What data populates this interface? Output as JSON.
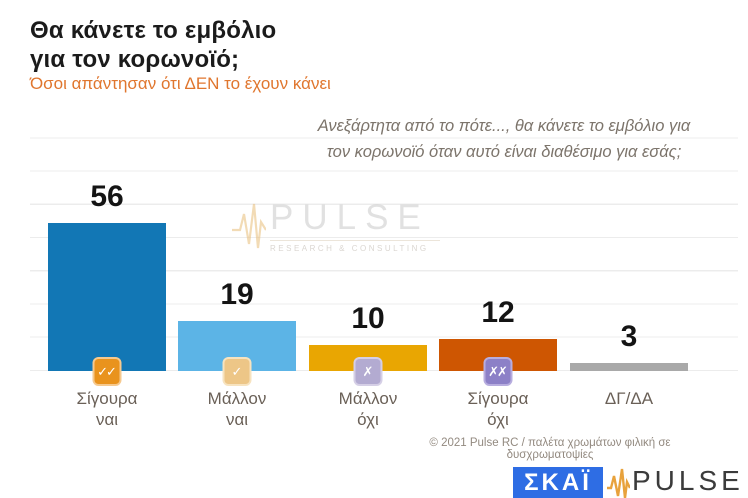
{
  "header": {
    "title_line1": "Θα κάνετε το εμβόλιο",
    "title_line2": "για τον κορωνοϊό;",
    "subtitle": "Όσοι απάντησαν ότι ΔΕΝ το έχουν κάνει"
  },
  "question": {
    "line1": "Ανεξάρτητα από το πότε..., θα κάνετε το εμβόλιο για",
    "line2": "τον κορωνοϊό όταν αυτό είναι διαθέσιμο για εσάς;"
  },
  "chart_data": {
    "type": "bar",
    "title": "Θα κάνετε το εμβόλιο για τον κορωνοϊό;",
    "subtitle": "Όσοι απάντησαν ότι ΔΕΝ το έχουν κάνει",
    "categories": [
      "Σίγουρα ναι",
      "Μάλλον ναι",
      "Μάλλον όχι",
      "Σίγουρα όχι",
      "ΔΓ/ΔΑ"
    ],
    "values": [
      56,
      19,
      10,
      12,
      3
    ],
    "category_lines": [
      [
        "Σίγουρα",
        "ναι"
      ],
      [
        "Μάλλον",
        "ναι"
      ],
      [
        "Μάλλον",
        "όχι"
      ],
      [
        "Σίγουρα",
        "όχι"
      ],
      [
        "ΔΓ/ΔΑ",
        ""
      ]
    ],
    "bar_colors": [
      "#1277b5",
      "#5cb4e6",
      "#e9a602",
      "#ce5602",
      "#a9a9a9"
    ],
    "badge_glyphs": [
      "✓✓",
      "✓",
      "✗",
      "✗✗",
      ""
    ],
    "badge_colors": [
      "#e9931d",
      "#edc687",
      "#b3abd1",
      "#8c80c7",
      ""
    ],
    "badge_border_colors": [
      "#f6c98e",
      "#f7e3bf",
      "#d5cfe6",
      "#b7addf",
      ""
    ],
    "xlabel": "",
    "ylabel": "",
    "ylim": [
      0,
      100
    ],
    "grid": true,
    "legend": "none"
  },
  "watermark": {
    "brand": "PULSE",
    "tagline": "RESEARCH & CONSULTING"
  },
  "footer": {
    "credit": "© 2021 Pulse RC  /  παλέτα χρωμάτων φιλική σε δυσχρωματοψίες"
  },
  "logos": {
    "skai_label": "ΣΚΑΪ",
    "pulse_label": "PULSE"
  }
}
